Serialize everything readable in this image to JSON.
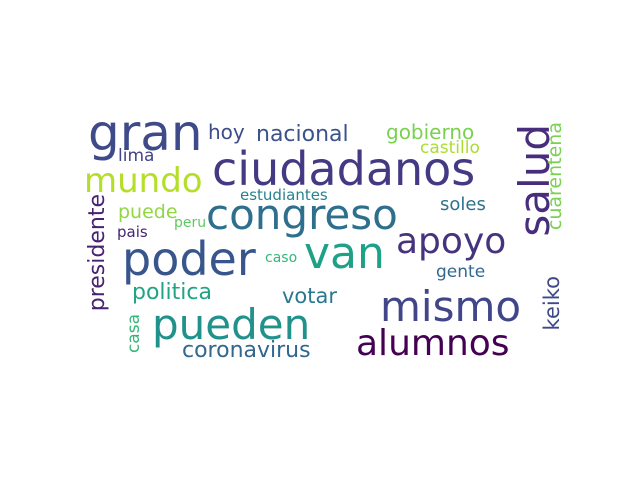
{
  "word_cloud": {
    "words": [
      {
        "key": "gran",
        "text": "gran",
        "color": "#3f4a89"
      },
      {
        "key": "ciudadanos",
        "text": "ciudadanos",
        "color": "#433a83"
      },
      {
        "key": "congreso",
        "text": "congreso",
        "color": "#2e6f8e"
      },
      {
        "key": "poder",
        "text": "poder",
        "color": "#39568c"
      },
      {
        "key": "van",
        "text": "van",
        "color": "#1fa187"
      },
      {
        "key": "apoyo",
        "text": "apoyo",
        "color": "#46337e"
      },
      {
        "key": "salud",
        "text": "salud",
        "color": "#472d7b"
      },
      {
        "key": "mismo",
        "text": "mismo",
        "color": "#404688"
      },
      {
        "key": "pueden",
        "text": "pueden",
        "color": "#21918c"
      },
      {
        "key": "alumnos",
        "text": "alumnos",
        "color": "#440154"
      },
      {
        "key": "mundo",
        "text": "mundo",
        "color": "#b5de2b"
      },
      {
        "key": "hoy",
        "text": "hoy",
        "color": "#3e4c8a"
      },
      {
        "key": "nacional",
        "text": "nacional",
        "color": "#3b528b"
      },
      {
        "key": "gobierno",
        "text": "gobierno",
        "color": "#7ad151"
      },
      {
        "key": "castillo",
        "text": "castillo",
        "color": "#addc30"
      },
      {
        "key": "lima",
        "text": "lima",
        "color": "#414487"
      },
      {
        "key": "estudiantes",
        "text": "estudiantes",
        "color": "#26828e"
      },
      {
        "key": "puede",
        "text": "puede",
        "color": "#90d743"
      },
      {
        "key": "peru",
        "text": "peru",
        "color": "#5ec962"
      },
      {
        "key": "soles",
        "text": "soles",
        "color": "#2c718e"
      },
      {
        "key": "pais",
        "text": "pais",
        "color": "#482475"
      },
      {
        "key": "caso",
        "text": "caso",
        "color": "#35b779"
      },
      {
        "key": "presidente",
        "text": "presidente",
        "color": "#482173"
      },
      {
        "key": "cuarentena",
        "text": "cuarentena",
        "color": "#7ad151"
      },
      {
        "key": "gente",
        "text": "gente",
        "color": "#31688e"
      },
      {
        "key": "politica",
        "text": "politica",
        "color": "#20a486"
      },
      {
        "key": "votar",
        "text": "votar",
        "color": "#2a788e"
      },
      {
        "key": "keiko",
        "text": "keiko",
        "color": "#3e4989"
      },
      {
        "key": "casa",
        "text": "casa",
        "color": "#34b679"
      },
      {
        "key": "coronavirus",
        "text": "coronavirus",
        "color": "#31678e"
      }
    ]
  }
}
